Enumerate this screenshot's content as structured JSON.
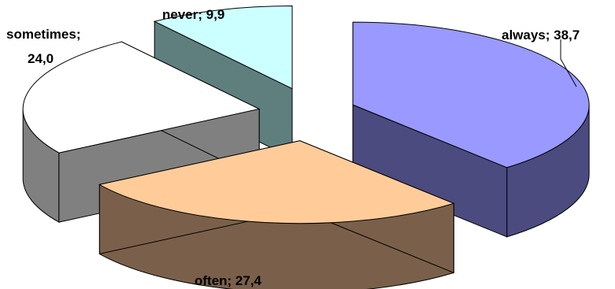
{
  "chart_data": {
    "type": "pie",
    "style": "3d-exploded",
    "title": "",
    "legend": "none",
    "slices": [
      {
        "label": "always; 38,7",
        "category": "always",
        "value": 38.7,
        "top_color": "#9999FF",
        "side_color": "#4B4B80"
      },
      {
        "label": "often; 27,4",
        "category": "often",
        "value": 27.4,
        "top_color": "#FFCC99",
        "side_color": "#7A604A"
      },
      {
        "label": "sometimes; 24,0",
        "category": "sometimes",
        "value": 24.0,
        "top_color": "#FFFFFF",
        "side_color": "#808080"
      },
      {
        "label": "never; 9,9",
        "category": "never",
        "value": 9.9,
        "top_color": "#CCFFFF",
        "side_color": "#5F7F7F"
      }
    ]
  }
}
